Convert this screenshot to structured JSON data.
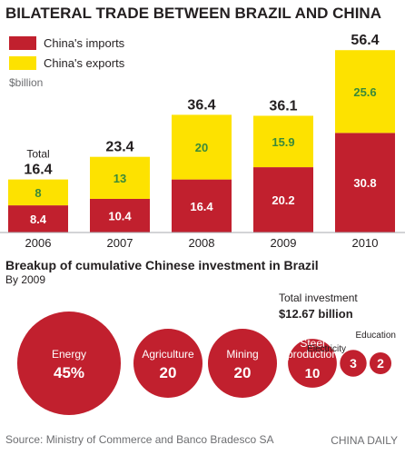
{
  "colors": {
    "imports": "#c1202e",
    "exports": "#fde200",
    "bubble": "#c1202e",
    "export_label": "#3a8a3a",
    "baseline": "#a7a9ac"
  },
  "chart_data": [
    {
      "type": "bar",
      "stacked": true,
      "title": "BILATERAL TRADE BETWEEN BRAZIL AND CHINA",
      "unit": "$billion",
      "total_caption": "Total",
      "categories": [
        "2006",
        "2007",
        "2008",
        "2009",
        "2010"
      ],
      "series": [
        {
          "name": "China's imports",
          "values": [
            8.4,
            10.4,
            16.4,
            20.2,
            30.8
          ]
        },
        {
          "name": "China's exports",
          "values": [
            8,
            13,
            20,
            15.9,
            25.6
          ]
        }
      ],
      "totals": [
        "16.4",
        "23.4",
        "36.4",
        "36.1",
        "56.4"
      ],
      "legend_position": "top-left",
      "grid": false,
      "ylim": [
        0,
        60
      ]
    },
    {
      "type": "bubble",
      "title": "Breakup of cumulative Chinese investment in Brazil",
      "subtitle": "By 2009",
      "total_caption": "Total investment",
      "total_value": "$12.67 billion",
      "items": [
        {
          "name": "Energy",
          "value": "45%",
          "v": 45
        },
        {
          "name": "Agriculture",
          "value": "20",
          "v": 20
        },
        {
          "name": "Mining",
          "value": "20",
          "v": 20
        },
        {
          "name": "Steel production",
          "value": "10",
          "v": 10
        },
        {
          "name": "Electricity",
          "value": "3",
          "v": 3
        },
        {
          "name": "Education",
          "value": "2",
          "v": 2
        }
      ]
    }
  ],
  "source": "Source: Ministry of Commerce and Banco Bradesco SA",
  "credit": "CHINA DAILY"
}
